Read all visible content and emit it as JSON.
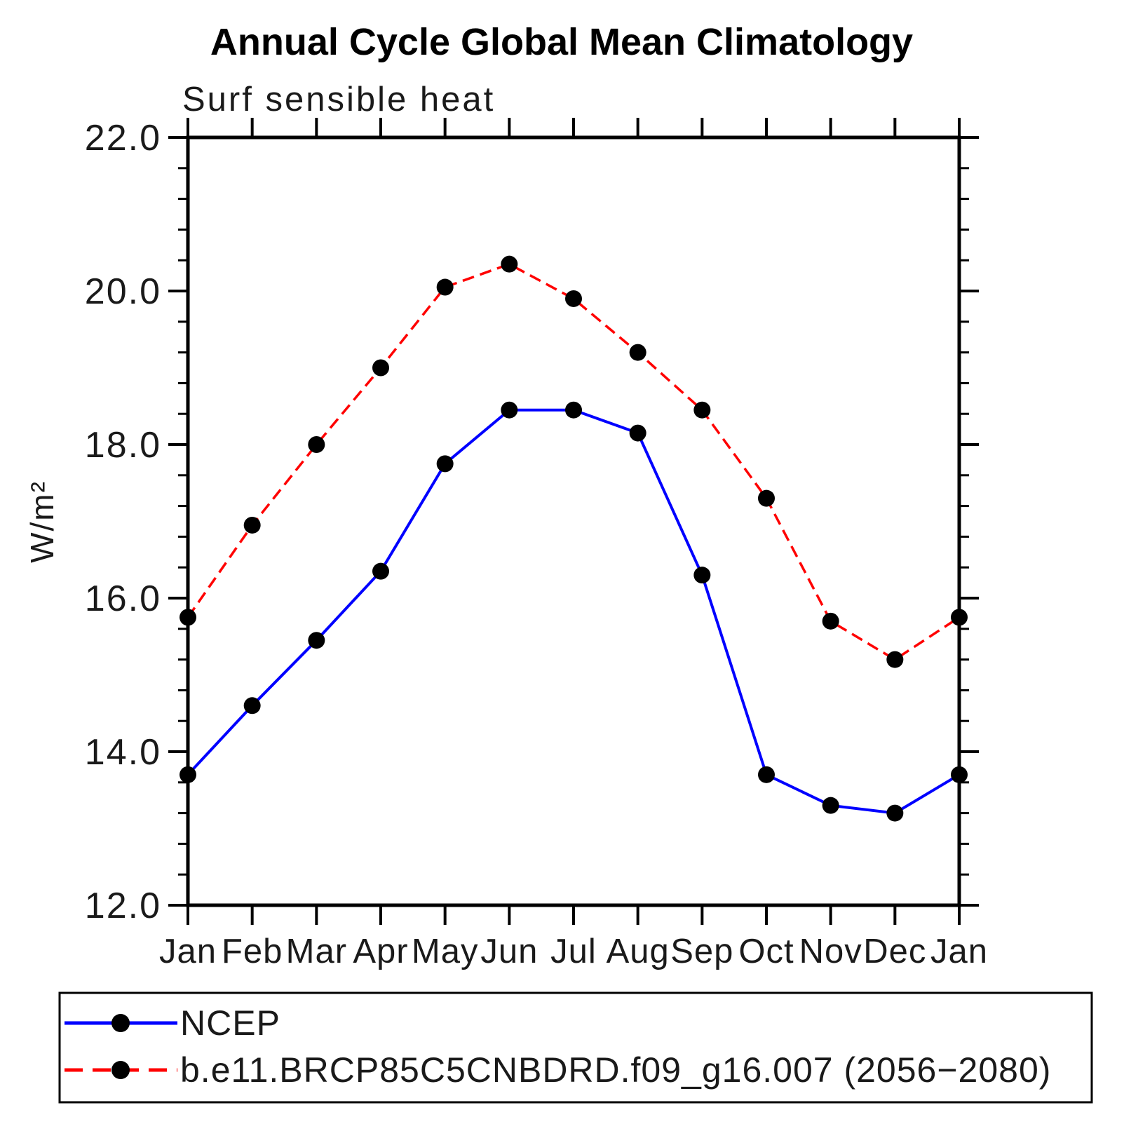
{
  "page": {
    "background_color": "#ffffff"
  },
  "chart_data": {
    "type": "line",
    "title": "Annual Cycle Global Mean Climatology",
    "subtitle": "Surf sensible heat",
    "xlabel": "",
    "ylabel": "W/m²",
    "categories": [
      "Jan",
      "Feb",
      "Mar",
      "Apr",
      "May",
      "Jun",
      "Jul",
      "Aug",
      "Sep",
      "Oct",
      "Nov",
      "Dec",
      "Jan"
    ],
    "ylim": [
      12.0,
      22.0
    ],
    "ytick_major_interval": 2.0,
    "ytick_minor_interval": 0.4,
    "ytick_labels": [
      "12.0",
      "14.0",
      "16.0",
      "18.0",
      "20.0",
      "22.0"
    ],
    "grid": "off",
    "legend_position": "bottom-left-box",
    "axis_color": "#000000",
    "marker_color": "#000000",
    "series": [
      {
        "name": "NCEP",
        "color": "#0000ff",
        "line_style": "solid",
        "marker": "filled-circle",
        "values": [
          13.7,
          14.6,
          15.45,
          16.35,
          17.75,
          18.45,
          18.45,
          18.15,
          16.3,
          13.7,
          13.3,
          13.2,
          13.7
        ]
      },
      {
        "name": "b.e11.BRCP85C5CNBDRD.f09_g16.007 (2056−2080)",
        "color": "#ff0000",
        "line_style": "dashed",
        "marker": "filled-circle",
        "values": [
          15.75,
          16.95,
          18.0,
          19.0,
          20.05,
          20.35,
          19.9,
          19.2,
          18.45,
          17.3,
          15.7,
          15.2,
          15.75
        ]
      }
    ]
  }
}
